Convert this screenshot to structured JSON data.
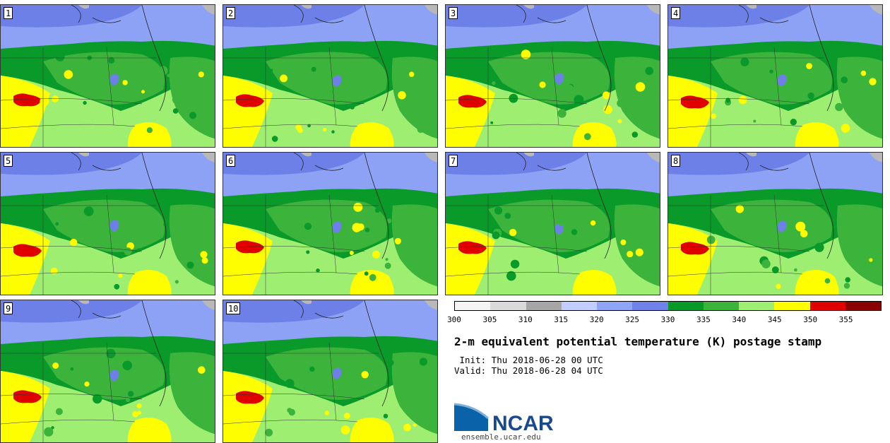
{
  "panels": [
    "1",
    "2",
    "3",
    "4",
    "5",
    "6",
    "7",
    "8",
    "9",
    "10"
  ],
  "colorbar": {
    "colors": [
      "#f4f4f4",
      "#d9d9d9",
      "#a6a6a6",
      "#c0cdfd",
      "#8fa4f5",
      "#7081ea",
      "#089a29",
      "#3cb43c",
      "#9eee72",
      "#fefe00",
      "#e10000",
      "#8b0000"
    ],
    "ticks": [
      "300",
      "305",
      "310",
      "315",
      "320",
      "325",
      "330",
      "335",
      "340",
      "345",
      "350",
      "355"
    ]
  },
  "title": "2-m equivalent potential temperature (K) postage stamp",
  "init": " Init: Thu 2018-06-28 00 UTC",
  "valid": "Valid: Thu 2018-06-28 04 UTC",
  "logo": {
    "text": "NCAR",
    "url": "ensemble.ucar.edu",
    "color": "#1a4a8c"
  },
  "map_colors": {
    "blue_dark": "#6d80e8",
    "blue_light": "#8da2f4",
    "green_dark": "#099a29",
    "green_mid": "#3cb43c",
    "green_light": "#9eee72",
    "yellow": "#fefe00",
    "red": "#e10000",
    "gray": "#b8b8b8"
  }
}
